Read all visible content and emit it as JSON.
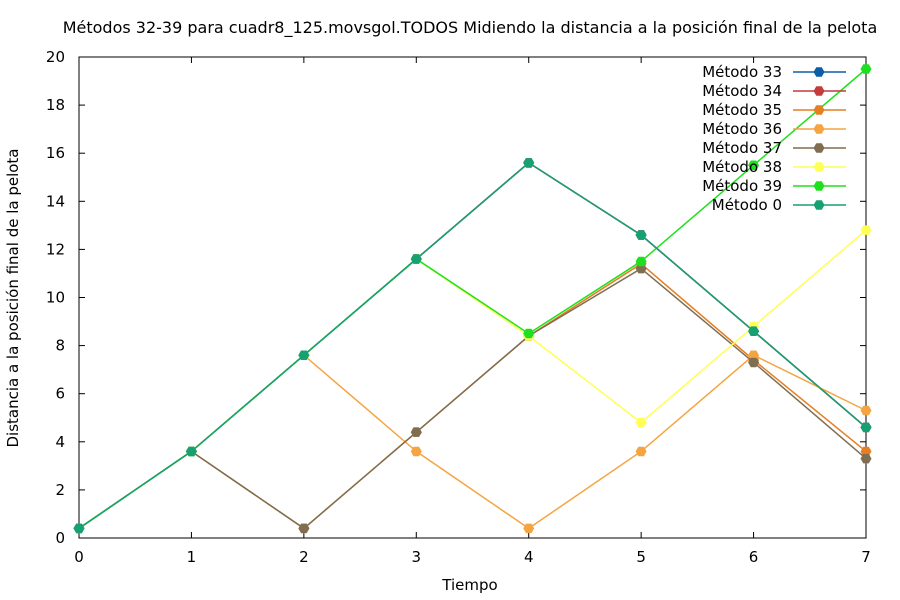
{
  "chart_data": {
    "type": "line",
    "title": "Métodos 32-39 para cuadr8_125.movsgol.TODOS Midiendo la distancia a la posición final de la pelota",
    "xlabel": "Tiempo",
    "ylabel": "Distancia a la posición final de la pelota",
    "xlim": [
      0,
      7
    ],
    "ylim": [
      0,
      20
    ],
    "xticks": [
      0,
      1,
      2,
      3,
      4,
      5,
      6,
      7
    ],
    "yticks": [
      0,
      2,
      4,
      6,
      8,
      10,
      12,
      14,
      16,
      18,
      20
    ],
    "grid": false,
    "legend_position": "top-right",
    "x": [
      0,
      1,
      2,
      3,
      4,
      5,
      6,
      7
    ],
    "series": [
      {
        "name": "Método 33",
        "color": "#0b5ea8",
        "values": [
          0.4,
          3.6,
          7.6,
          11.6,
          15.6,
          12.6,
          8.6,
          4.6
        ]
      },
      {
        "name": "Método 34",
        "color": "#c43c3c",
        "values": [
          0.4,
          3.6,
          7.6,
          11.6,
          15.6,
          12.6,
          8.6,
          4.6
        ]
      },
      {
        "name": "Método 35",
        "color": "#e67e22",
        "values": [
          0.4,
          3.6,
          0.4,
          4.4,
          8.4,
          11.4,
          7.4,
          3.6
        ]
      },
      {
        "name": "Método 36",
        "color": "#f5a442",
        "values": [
          0.4,
          3.6,
          7.6,
          3.6,
          0.4,
          3.6,
          7.6,
          5.3
        ]
      },
      {
        "name": "Método 37",
        "color": "#7f6e51",
        "values": [
          0.4,
          3.6,
          0.4,
          4.4,
          8.4,
          11.2,
          7.3,
          3.3
        ]
      },
      {
        "name": "Método 38",
        "color": "#ffff55",
        "values": [
          0.4,
          3.6,
          7.6,
          11.6,
          8.4,
          4.8,
          8.8,
          12.8
        ]
      },
      {
        "name": "Método 39",
        "color": "#1ee01e",
        "values": [
          0.4,
          3.6,
          7.6,
          11.6,
          8.5,
          11.5,
          15.5,
          19.5
        ]
      },
      {
        "name": "Método 0",
        "color": "#17a072",
        "values": [
          0.4,
          3.6,
          7.6,
          11.6,
          15.6,
          12.6,
          8.6,
          4.6
        ]
      }
    ]
  }
}
